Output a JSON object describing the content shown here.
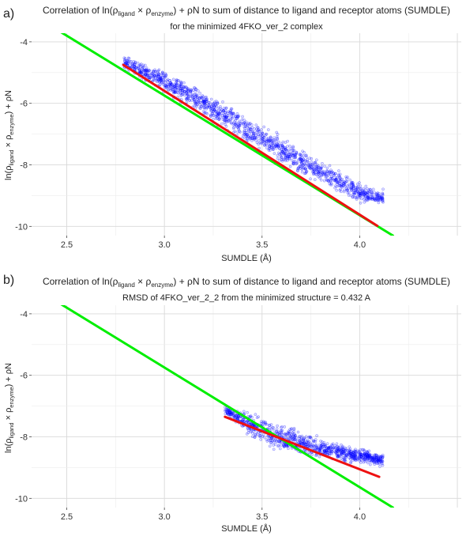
{
  "chart_data": [
    {
      "panel_label": "a)",
      "type": "scatter",
      "title": {
        "pre": "Correlation of ln(ρ",
        "sub1": "ligand",
        "mid": " × ρ",
        "sub2": "enzyme",
        "post": ") + ρN to sum of distance to ligand and receptor atoms (SUMDLE)"
      },
      "subtitle": "for the minimized 4FKO_ver_2 complex",
      "xlabel": "SUMDLE (Å)",
      "ylabel": {
        "pre": "ln(ρ",
        "sub1": "ligand",
        "mid": " × ρ",
        "sub2": "enzyme",
        "post": ") + ρN"
      },
      "xlim": [
        2.32,
        4.52
      ],
      "ylim": [
        -10.3,
        -3.72
      ],
      "xticks": [
        2.5,
        3.0,
        3.5,
        4.0
      ],
      "xtick_labels": [
        "2.5",
        "3.0",
        "3.5",
        "4.0"
      ],
      "yticks": [
        -4,
        -6,
        -8,
        -10
      ],
      "ytick_labels": [
        "-4",
        "-6",
        "-8",
        "-10"
      ],
      "grid": true,
      "point_color": "#0000ff",
      "point_cloud": {
        "centerline": [
          [
            2.8,
            -4.7
          ],
          [
            3.0,
            -5.3
          ],
          [
            3.2,
            -6.0
          ],
          [
            3.4,
            -6.75
          ],
          [
            3.6,
            -7.5
          ],
          [
            3.8,
            -8.25
          ],
          [
            4.0,
            -8.9
          ],
          [
            4.1,
            -9.05
          ]
        ],
        "spread": [
          [
            2.8,
            0.35
          ],
          [
            3.0,
            0.45
          ],
          [
            3.2,
            0.5
          ],
          [
            3.4,
            0.55
          ],
          [
            3.6,
            0.55
          ],
          [
            3.8,
            0.45
          ],
          [
            4.0,
            0.4
          ],
          [
            4.1,
            0.3
          ]
        ],
        "x_range": [
          2.79,
          4.12
        ],
        "n_points": 1400
      },
      "lines": [
        {
          "color": "#00ee00",
          "points": [
            [
              2.32,
              -3.1
            ],
            [
              4.17,
              -10.3
            ]
          ]
        },
        {
          "color": "#ee1111",
          "points": [
            [
              2.79,
              -4.75
            ],
            [
              4.09,
              -9.98
            ]
          ]
        }
      ]
    },
    {
      "panel_label": "b)",
      "type": "scatter",
      "title": {
        "pre": "Correlation of ln(ρ",
        "sub1": "ligand",
        "mid": " × ρ",
        "sub2": "enzyme",
        "post": ") + ρN to sum of distance to ligand and receptor atoms (SUMDLE)"
      },
      "subtitle": "RMSD of 4FKO_ver_2_2 from the minimized structure = 0.432 A",
      "xlabel": "SUMDLE (Å)",
      "ylabel": {
        "pre": "ln(ρ",
        "sub1": "ligand",
        "mid": " × ρ",
        "sub2": "enzyme",
        "post": ") + ρN"
      },
      "xlim": [
        2.32,
        4.52
      ],
      "ylim": [
        -10.3,
        -3.72
      ],
      "xticks": [
        2.5,
        3.0,
        3.5,
        4.0
      ],
      "xtick_labels": [
        "2.5",
        "3.0",
        "3.5",
        "4.0"
      ],
      "yticks": [
        -4,
        -6,
        -8,
        -10
      ],
      "ytick_labels": [
        "-4",
        "-6",
        "-8",
        "-10"
      ],
      "grid": true,
      "point_color": "#0000ff",
      "point_cloud": {
        "centerline": [
          [
            3.32,
            -7.15
          ],
          [
            3.45,
            -7.65
          ],
          [
            3.6,
            -8.05
          ],
          [
            3.75,
            -8.3
          ],
          [
            3.9,
            -8.5
          ],
          [
            4.1,
            -8.75
          ]
        ],
        "spread": [
          [
            3.32,
            0.2
          ],
          [
            3.45,
            0.45
          ],
          [
            3.6,
            0.55
          ],
          [
            3.75,
            0.5
          ],
          [
            3.9,
            0.35
          ],
          [
            4.1,
            0.25
          ]
        ],
        "x_range": [
          3.31,
          4.12
        ],
        "n_points": 1000
      },
      "lines": [
        {
          "color": "#00ee00",
          "points": [
            [
              2.32,
              -3.1
            ],
            [
              4.17,
              -10.3
            ]
          ]
        },
        {
          "color": "#ee1111",
          "points": [
            [
              3.31,
              -7.35
            ],
            [
              4.1,
              -9.3
            ]
          ]
        }
      ]
    }
  ]
}
